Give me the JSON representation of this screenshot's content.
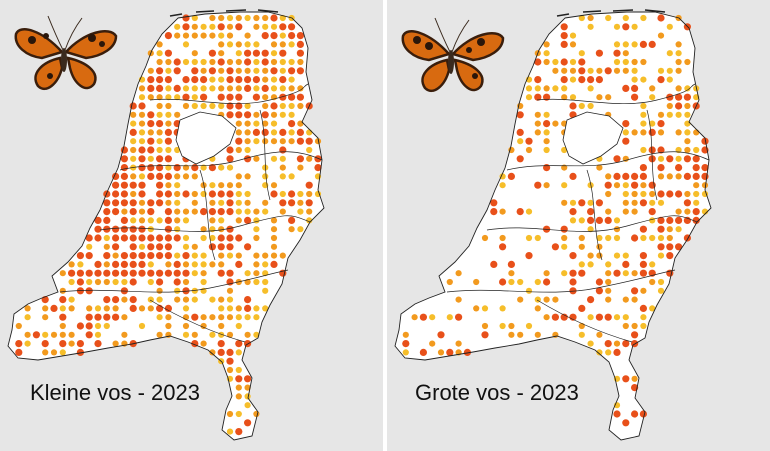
{
  "maps": [
    {
      "id": "kleine",
      "caption": "Kleine vos - 2023",
      "butterfly_icon": "small-tortoiseshell-butterfly",
      "densities": {
        "far_north": 0.75,
        "north": 0.92,
        "west": 0.93,
        "central": 0.72,
        "east": 0.52,
        "southwest": 0.62,
        "south": 0.6,
        "limburg": 0.7
      },
      "red_share": {
        "far_north": 0.45,
        "north": 0.38,
        "west": 0.72,
        "central": 0.35,
        "east": 0.15,
        "southwest": 0.35,
        "south": 0.22,
        "limburg": 0.35
      }
    },
    {
      "id": "grote",
      "caption": "Grote vos - 2023",
      "butterfly_icon": "large-tortoiseshell-butterfly",
      "densities": {
        "far_north": 0.45,
        "north": 0.62,
        "west": 0.25,
        "central": 0.55,
        "east": 0.72,
        "southwest": 0.18,
        "south": 0.4,
        "limburg": 0.5
      },
      "red_share": {
        "far_north": 0.3,
        "north": 0.35,
        "west": 0.45,
        "central": 0.4,
        "east": 0.5,
        "southwest": 0.15,
        "south": 0.35,
        "limburg": 0.45
      }
    }
  ],
  "colors": {
    "background": "#e6e6e6",
    "land": "#ffffff",
    "border": "#222222",
    "dot_red": "#e8501a",
    "dot_orange": "#f29a1e",
    "dot_yellow": "#f6be2a"
  }
}
